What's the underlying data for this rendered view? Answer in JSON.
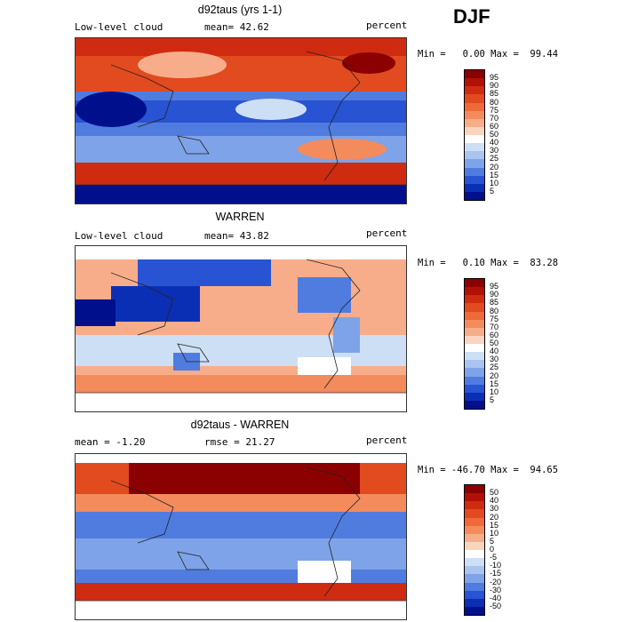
{
  "season": "DJF",
  "panels": [
    {
      "title": "d92taus (yrs 1-1)",
      "left_label": "Low-level cloud",
      "center_label": "mean=  42.62",
      "right_label": "percent",
      "stats": "Min =   0.00 Max =  99.44",
      "colorbar_labels": [
        "95",
        "90",
        "85",
        "80",
        "75",
        "70",
        "60",
        "50",
        "40",
        "30",
        "25",
        "20",
        "15",
        "10",
        "5"
      ],
      "colorbar_colors": [
        "#8b0000",
        "#b01006",
        "#cf2b10",
        "#e24a1f",
        "#ee6a38",
        "#f48b5c",
        "#f8ad8a",
        "#fbd4c0",
        "#ffffff",
        "#cddff4",
        "#a9c4ee",
        "#7ea3e8",
        "#507ce0",
        "#2853d2",
        "#0b2fb4",
        "#00108c"
      ]
    },
    {
      "title": "WARREN",
      "left_label": "Low-level cloud",
      "center_label": "mean=  43.82",
      "right_label": "percent",
      "stats": "Min =   0.10 Max =  83.28",
      "colorbar_labels": [
        "95",
        "90",
        "85",
        "80",
        "75",
        "70",
        "60",
        "50",
        "40",
        "30",
        "25",
        "20",
        "15",
        "10",
        "5"
      ],
      "colorbar_colors": [
        "#8b0000",
        "#b01006",
        "#cf2b10",
        "#e24a1f",
        "#ee6a38",
        "#f48b5c",
        "#f8ad8a",
        "#fbd4c0",
        "#ffffff",
        "#cddff4",
        "#a9c4ee",
        "#7ea3e8",
        "#507ce0",
        "#2853d2",
        "#0b2fb4",
        "#00108c"
      ]
    },
    {
      "title": "d92taus - WARREN",
      "left_label": "mean =  -1.20",
      "center_label": "rmse =  21.27",
      "right_label": "percent",
      "stats": "Min = -46.70 Max =  94.65",
      "colorbar_labels": [
        "50",
        "40",
        "30",
        "20",
        "15",
        "10",
        "5",
        "0",
        "-5",
        "-10",
        "-15",
        "-20",
        "-30",
        "-40",
        "-50"
      ],
      "colorbar_colors": [
        "#8b0000",
        "#b01006",
        "#cf2b10",
        "#e24a1f",
        "#ee6a38",
        "#f48b5c",
        "#f8ad8a",
        "#fbd4c0",
        "#ffffff",
        "#cddff4",
        "#a9c4ee",
        "#7ea3e8",
        "#507ce0",
        "#2853d2",
        "#0b2fb4",
        "#00108c"
      ]
    }
  ]
}
